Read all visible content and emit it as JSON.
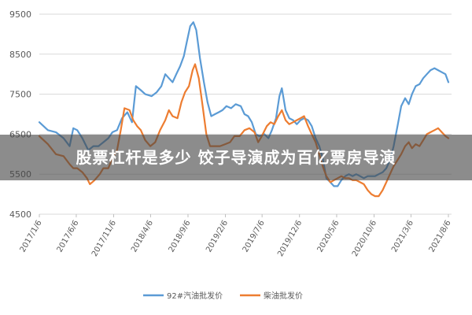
{
  "overlay": {
    "title": "股票杠杆是多少 饺子导演成为百亿票房导演"
  },
  "colors": {
    "series_92": "#5b9bd5",
    "series_diesel": "#ed7d31",
    "grid": "#d9d9d9",
    "overlay": "rgba(70,70,70,0.62)"
  },
  "chart_data": {
    "type": "line",
    "title": "",
    "xlabel": "",
    "ylabel": "",
    "ylim": [
      4500,
      9500
    ],
    "yticks": [
      4500,
      5500,
      6500,
      7500,
      8500,
      9500
    ],
    "grid": "horizontal",
    "legend": "bottom-center",
    "x_tick_labels": [
      "2017/1/6",
      "2017/6/6",
      "2017/11/6",
      "2018/4/6",
      "2018/9/6",
      "2019/2/6",
      "2019/7/6",
      "2019/12/6",
      "2020/5/6",
      "2020/10/6",
      "2021/3/6",
      "2021/8/6"
    ],
    "x_tick_dates": [
      "2017-01-06",
      "2017-06-06",
      "2017-11-06",
      "2018-04-06",
      "2018-09-06",
      "2019-02-06",
      "2019-07-06",
      "2019-12-06",
      "2020-05-06",
      "2020-10-06",
      "2021-03-06",
      "2021-08-06"
    ],
    "series": [
      {
        "name": "92#汽油批发价",
        "color": "#5b9bd5",
        "points": [
          [
            "2017-01-06",
            6800
          ],
          [
            "2017-02-10",
            6600
          ],
          [
            "2017-03-15",
            6550
          ],
          [
            "2017-04-15",
            6400
          ],
          [
            "2017-05-10",
            6200
          ],
          [
            "2017-05-25",
            6650
          ],
          [
            "2017-06-10",
            6600
          ],
          [
            "2017-07-01",
            6400
          ],
          [
            "2017-07-25",
            6100
          ],
          [
            "2017-08-15",
            6200
          ],
          [
            "2017-09-05",
            6200
          ],
          [
            "2017-09-25",
            6300
          ],
          [
            "2017-10-15",
            6400
          ],
          [
            "2017-11-01",
            6550
          ],
          [
            "2017-11-20",
            6600
          ],
          [
            "2017-12-10",
            6900
          ],
          [
            "2018-01-01",
            7050
          ],
          [
            "2018-01-20",
            6800
          ],
          [
            "2018-02-05",
            7700
          ],
          [
            "2018-02-25",
            7600
          ],
          [
            "2018-03-15",
            7500
          ],
          [
            "2018-04-10",
            7450
          ],
          [
            "2018-05-01",
            7550
          ],
          [
            "2018-05-20",
            7700
          ],
          [
            "2018-06-05",
            8000
          ],
          [
            "2018-06-20",
            7900
          ],
          [
            "2018-07-05",
            7800
          ],
          [
            "2018-07-20",
            8000
          ],
          [
            "2018-08-05",
            8200
          ],
          [
            "2018-08-20",
            8450
          ],
          [
            "2018-09-01",
            8800
          ],
          [
            "2018-09-15",
            9200
          ],
          [
            "2018-09-28",
            9300
          ],
          [
            "2018-10-10",
            9100
          ],
          [
            "2018-10-25",
            8400
          ],
          [
            "2018-11-10",
            7800
          ],
          [
            "2018-11-25",
            7300
          ],
          [
            "2018-12-10",
            6950
          ],
          [
            "2018-12-25",
            7000
          ],
          [
            "2019-01-10",
            7050
          ],
          [
            "2019-01-25",
            7100
          ],
          [
            "2019-02-10",
            7200
          ],
          [
            "2019-03-01",
            7150
          ],
          [
            "2019-03-20",
            7250
          ],
          [
            "2019-04-10",
            7200
          ],
          [
            "2019-04-25",
            7000
          ],
          [
            "2019-05-10",
            6950
          ],
          [
            "2019-05-25",
            6800
          ],
          [
            "2019-06-10",
            6500
          ],
          [
            "2019-06-25",
            6450
          ],
          [
            "2019-07-15",
            6500
          ],
          [
            "2019-08-01",
            6400
          ],
          [
            "2019-08-15",
            6600
          ],
          [
            "2019-09-01",
            6900
          ],
          [
            "2019-09-15",
            7450
          ],
          [
            "2019-09-25",
            7650
          ],
          [
            "2019-10-10",
            7100
          ],
          [
            "2019-10-25",
            6900
          ],
          [
            "2019-11-10",
            6850
          ],
          [
            "2019-11-25",
            6750
          ],
          [
            "2019-12-10",
            6850
          ],
          [
            "2019-12-25",
            6900
          ],
          [
            "2020-01-10",
            6850
          ],
          [
            "2020-01-25",
            6700
          ],
          [
            "2020-02-10",
            6400
          ],
          [
            "2020-02-25",
            6200
          ],
          [
            "2020-03-10",
            5900
          ],
          [
            "2020-03-25",
            5400
          ],
          [
            "2020-04-10",
            5300
          ],
          [
            "2020-04-25",
            5200
          ],
          [
            "2020-05-10",
            5200
          ],
          [
            "2020-05-25",
            5350
          ],
          [
            "2020-06-10",
            5450
          ],
          [
            "2020-06-25",
            5500
          ],
          [
            "2020-07-10",
            5450
          ],
          [
            "2020-07-25",
            5500
          ],
          [
            "2020-08-10",
            5450
          ],
          [
            "2020-08-25",
            5400
          ],
          [
            "2020-09-10",
            5450
          ],
          [
            "2020-09-25",
            5450
          ],
          [
            "2020-10-10",
            5450
          ],
          [
            "2020-10-25",
            5500
          ],
          [
            "2020-11-10",
            5550
          ],
          [
            "2020-11-25",
            5650
          ],
          [
            "2020-12-10",
            5850
          ],
          [
            "2020-12-25",
            6200
          ],
          [
            "2021-01-10",
            6700
          ],
          [
            "2021-01-25",
            7200
          ],
          [
            "2021-02-10",
            7400
          ],
          [
            "2021-02-25",
            7250
          ],
          [
            "2021-03-10",
            7500
          ],
          [
            "2021-03-25",
            7700
          ],
          [
            "2021-04-10",
            7750
          ],
          [
            "2021-04-25",
            7900
          ],
          [
            "2021-05-10",
            8000
          ],
          [
            "2021-05-25",
            8100
          ],
          [
            "2021-06-10",
            8150
          ],
          [
            "2021-06-25",
            8100
          ],
          [
            "2021-07-10",
            8050
          ],
          [
            "2021-07-25",
            8000
          ],
          [
            "2021-08-06",
            7800
          ]
        ]
      },
      {
        "name": "柴油批发价",
        "color": "#ed7d31",
        "points": [
          [
            "2017-01-06",
            6450
          ],
          [
            "2017-02-10",
            6250
          ],
          [
            "2017-03-15",
            6000
          ],
          [
            "2017-04-15",
            5950
          ],
          [
            "2017-05-10",
            5750
          ],
          [
            "2017-05-25",
            5650
          ],
          [
            "2017-06-10",
            5650
          ],
          [
            "2017-07-01",
            5550
          ],
          [
            "2017-07-20",
            5400
          ],
          [
            "2017-08-01",
            5250
          ],
          [
            "2017-08-20",
            5350
          ],
          [
            "2017-09-10",
            5500
          ],
          [
            "2017-09-25",
            5650
          ],
          [
            "2017-10-15",
            5650
          ],
          [
            "2017-11-01",
            5900
          ],
          [
            "2017-11-20",
            6100
          ],
          [
            "2017-12-05",
            6600
          ],
          [
            "2017-12-20",
            7150
          ],
          [
            "2018-01-10",
            7100
          ],
          [
            "2018-01-25",
            6850
          ],
          [
            "2018-02-10",
            6700
          ],
          [
            "2018-02-25",
            6600
          ],
          [
            "2018-03-15",
            6350
          ],
          [
            "2018-04-05",
            6200
          ],
          [
            "2018-04-25",
            6300
          ],
          [
            "2018-05-15",
            6600
          ],
          [
            "2018-06-05",
            6850
          ],
          [
            "2018-06-20",
            7100
          ],
          [
            "2018-07-05",
            6950
          ],
          [
            "2018-07-25",
            6900
          ],
          [
            "2018-08-10",
            7300
          ],
          [
            "2018-08-25",
            7550
          ],
          [
            "2018-09-10",
            7700
          ],
          [
            "2018-09-25",
            8100
          ],
          [
            "2018-10-05",
            8250
          ],
          [
            "2018-10-20",
            7900
          ],
          [
            "2018-11-05",
            7200
          ],
          [
            "2018-11-20",
            6500
          ],
          [
            "2018-12-05",
            6200
          ],
          [
            "2018-12-25",
            6200
          ],
          [
            "2019-01-15",
            6200
          ],
          [
            "2019-02-05",
            6250
          ],
          [
            "2019-02-25",
            6300
          ],
          [
            "2019-03-15",
            6450
          ],
          [
            "2019-04-05",
            6450
          ],
          [
            "2019-04-25",
            6600
          ],
          [
            "2019-05-15",
            6650
          ],
          [
            "2019-06-05",
            6550
          ],
          [
            "2019-06-20",
            6300
          ],
          [
            "2019-07-05",
            6450
          ],
          [
            "2019-07-25",
            6700
          ],
          [
            "2019-08-10",
            6800
          ],
          [
            "2019-08-25",
            6750
          ],
          [
            "2019-09-10",
            6950
          ],
          [
            "2019-09-25",
            7100
          ],
          [
            "2019-10-10",
            6850
          ],
          [
            "2019-10-25",
            6750
          ],
          [
            "2019-11-10",
            6800
          ],
          [
            "2019-11-25",
            6850
          ],
          [
            "2019-12-10",
            6900
          ],
          [
            "2019-12-25",
            6950
          ],
          [
            "2020-01-10",
            6700
          ],
          [
            "2020-01-25",
            6500
          ],
          [
            "2020-02-10",
            6300
          ],
          [
            "2020-02-25",
            6000
          ],
          [
            "2020-03-10",
            5700
          ],
          [
            "2020-03-25",
            5450
          ],
          [
            "2020-04-10",
            5300
          ],
          [
            "2020-04-25",
            5350
          ],
          [
            "2020-05-10",
            5400
          ],
          [
            "2020-05-25",
            5450
          ],
          [
            "2020-06-10",
            5400
          ],
          [
            "2020-06-25",
            5400
          ],
          [
            "2020-07-10",
            5350
          ],
          [
            "2020-07-25",
            5350
          ],
          [
            "2020-08-10",
            5300
          ],
          [
            "2020-08-25",
            5250
          ],
          [
            "2020-09-10",
            5100
          ],
          [
            "2020-09-25",
            5000
          ],
          [
            "2020-10-10",
            4950
          ],
          [
            "2020-10-25",
            4950
          ],
          [
            "2020-11-10",
            5100
          ],
          [
            "2020-11-25",
            5300
          ],
          [
            "2020-12-10",
            5500
          ],
          [
            "2020-12-25",
            5700
          ],
          [
            "2021-01-10",
            5850
          ],
          [
            "2021-01-25",
            6000
          ],
          [
            "2021-02-10",
            6200
          ],
          [
            "2021-02-25",
            6300
          ],
          [
            "2021-03-10",
            6150
          ],
          [
            "2021-03-25",
            6250
          ],
          [
            "2021-04-10",
            6200
          ],
          [
            "2021-04-25",
            6350
          ],
          [
            "2021-05-10",
            6500
          ],
          [
            "2021-05-25",
            6550
          ],
          [
            "2021-06-10",
            6600
          ],
          [
            "2021-06-25",
            6650
          ],
          [
            "2021-07-10",
            6550
          ],
          [
            "2021-07-25",
            6450
          ],
          [
            "2021-08-06",
            6400
          ]
        ]
      }
    ]
  }
}
